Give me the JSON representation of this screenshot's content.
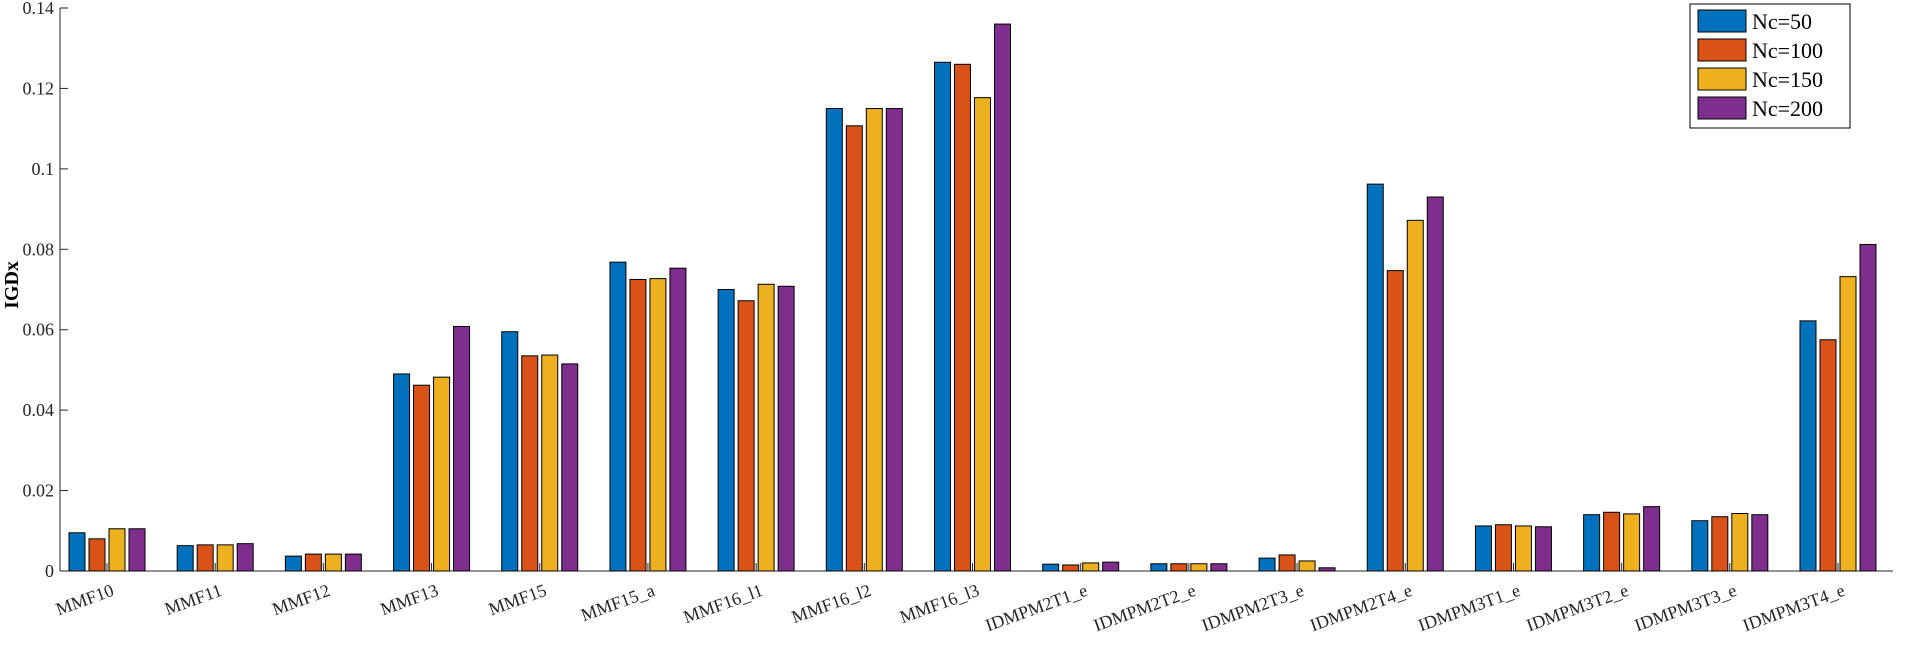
{
  "chart_data": {
    "type": "bar",
    "ylabel": "IGDx",
    "ylim": [
      0,
      0.14
    ],
    "yticks": [
      "0",
      "0.02",
      "0.04",
      "0.06",
      "0.08",
      "0.1",
      "0.12",
      "0.14"
    ],
    "grid": false,
    "legend_position": "top-right",
    "categories": [
      "MMF10",
      "MMF11",
      "MMF12",
      "MMF13",
      "MMF15",
      "MMF15_a",
      "MMF16_l1",
      "MMF16_l2",
      "MMF16_l3",
      "IDMPM2T1_e",
      "IDMPM2T2_e",
      "IDMPM2T3_e",
      "IDMPM2T4_e",
      "IDMPM3T1_e",
      "IDMPM3T2_e",
      "IDMPM3T3_e",
      "IDMPM3T4_e"
    ],
    "series": [
      {
        "name": "Nc=50",
        "color": "#0072BD",
        "values": [
          0.0095,
          0.0063,
          0.0037,
          0.049,
          0.0595,
          0.0768,
          0.07,
          0.115,
          0.1265,
          0.0017,
          0.0018,
          0.0032,
          0.0962,
          0.0112,
          0.014,
          0.0125,
          0.0622
        ]
      },
      {
        "name": "Nc=100",
        "color": "#D95319",
        "values": [
          0.008,
          0.0065,
          0.0042,
          0.0462,
          0.0535,
          0.0725,
          0.0672,
          0.1107,
          0.126,
          0.0015,
          0.0018,
          0.004,
          0.0747,
          0.0115,
          0.0146,
          0.0135,
          0.0575
        ]
      },
      {
        "name": "Nc=150",
        "color": "#EDB120",
        "values": [
          0.0105,
          0.0065,
          0.0042,
          0.0482,
          0.0537,
          0.0727,
          0.0713,
          0.115,
          0.1177,
          0.002,
          0.0018,
          0.0025,
          0.0872,
          0.0112,
          0.0142,
          0.0143,
          0.0732
        ]
      },
      {
        "name": "Nc=200",
        "color": "#7E2F8E",
        "values": [
          0.0105,
          0.0068,
          0.0042,
          0.0608,
          0.0515,
          0.0753,
          0.0708,
          0.115,
          0.136,
          0.0022,
          0.0018,
          0.0008,
          0.093,
          0.011,
          0.016,
          0.014,
          0.0812
        ]
      }
    ]
  }
}
